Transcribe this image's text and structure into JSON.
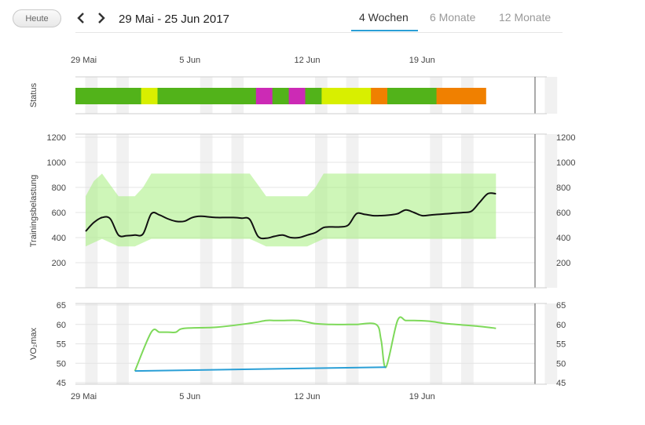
{
  "toolbar": {
    "today_label": "Heute",
    "date_range": "29 Mai - 25 Jun 2017",
    "tabs": [
      {
        "label": "4 Wochen",
        "active": true
      },
      {
        "label": "6 Monate",
        "active": false
      },
      {
        "label": "12 Monate",
        "active": false
      }
    ],
    "prev_icon": "chevron-left-icon",
    "next_icon": "chevron-right-icon",
    "accent_color": "#2a9fd6"
  },
  "chart_data": [
    {
      "type": "timeline",
      "ylabel": "Status",
      "x_tick_labels": [
        "29 Mai",
        "5 Jun",
        "12 Jun",
        "19 Jun"
      ],
      "x_tick_days": [
        0,
        7,
        14,
        21
      ],
      "days_total": 28,
      "segments": [
        {
          "start": 0,
          "end": 4,
          "color": "#52b31a"
        },
        {
          "start": 4,
          "end": 5,
          "color": "#d8ef00"
        },
        {
          "start": 5,
          "end": 11,
          "color": "#52b31a"
        },
        {
          "start": 11,
          "end": 12,
          "color": "#cc2ab5"
        },
        {
          "start": 12,
          "end": 13,
          "color": "#52b31a"
        },
        {
          "start": 13,
          "end": 14,
          "color": "#cc2ab5"
        },
        {
          "start": 14,
          "end": 15,
          "color": "#52b31a"
        },
        {
          "start": 15,
          "end": 18,
          "color": "#d8ef00"
        },
        {
          "start": 18,
          "end": 19,
          "color": "#f08000"
        },
        {
          "start": 19,
          "end": 22,
          "color": "#52b31a"
        },
        {
          "start": 22,
          "end": 25,
          "color": "#f08000"
        }
      ]
    },
    {
      "type": "line",
      "ylabel": "Trainingsbelastung",
      "ylim": [
        0,
        1200
      ],
      "yticks": [
        200,
        400,
        600,
        800,
        1000,
        1200
      ],
      "x_days": [
        0,
        0.5,
        1,
        1.5,
        2,
        2.5,
        3,
        3.5,
        4,
        4.5,
        5,
        5.5,
        6,
        6.5,
        7,
        7.5,
        8,
        8.5,
        9,
        9.5,
        10,
        10.5,
        11,
        11.5,
        12,
        12.5,
        13,
        13.5,
        14,
        14.5,
        15,
        15.5,
        16,
        16.5,
        17,
        17.5,
        18,
        18.5,
        19,
        19.5,
        20,
        20.5,
        21,
        21.5,
        22,
        22.5,
        23,
        23.5,
        24,
        24.5,
        25
      ],
      "series": [
        {
          "values": [
            450,
            520,
            560,
            550,
            420,
            415,
            420,
            430,
            590,
            580,
            550,
            530,
            530,
            560,
            570,
            565,
            560,
            560,
            560,
            555,
            545,
            410,
            395,
            410,
            420,
            400,
            400,
            420,
            440,
            480,
            485,
            485,
            500,
            590,
            585,
            575,
            575,
            580,
            590,
            620,
            600,
            575,
            580,
            585,
            590,
            595,
            600,
            610,
            680,
            750,
            750
          ],
          "color": "#111111"
        }
      ],
      "band": {
        "color": "#a5ef7d",
        "upper": [
          730,
          850,
          910,
          820,
          730,
          730,
          730,
          800,
          910,
          910,
          910,
          910,
          910,
          910,
          910,
          910,
          910,
          910,
          910,
          910,
          910,
          820,
          730,
          730,
          730,
          730,
          730,
          730,
          800,
          910,
          910,
          910,
          910,
          910,
          910,
          910,
          910,
          910,
          910,
          910,
          910,
          910,
          910,
          910,
          910,
          910,
          910,
          910,
          910,
          910,
          910
        ],
        "lower": [
          330,
          360,
          390,
          360,
          330,
          330,
          330,
          360,
          390,
          390,
          390,
          390,
          390,
          390,
          390,
          390,
          390,
          390,
          390,
          390,
          390,
          360,
          330,
          330,
          330,
          330,
          330,
          330,
          360,
          390,
          390,
          390,
          390,
          390,
          390,
          390,
          390,
          390,
          390,
          390,
          390,
          390,
          390,
          390,
          390,
          390,
          390,
          390,
          390,
          390,
          390
        ]
      }
    },
    {
      "type": "line",
      "ylabel": "VO₂max",
      "ylim": [
        45,
        65
      ],
      "yticks": [
        45,
        50,
        55,
        60,
        65
      ],
      "x_tick_labels": [
        "29 Mai",
        "5 Jun",
        "12 Jun",
        "19 Jun"
      ],
      "series": [
        {
          "color": "#7ed95a",
          "x_days": [
            3,
            4,
            4.5,
            5,
            5.5,
            6,
            8,
            10,
            11,
            11.5,
            12,
            13,
            14,
            15,
            16,
            16.5,
            17.7,
            18,
            18.3,
            19,
            19.5,
            20,
            21,
            22,
            24,
            25
          ],
          "values": [
            48,
            58,
            58,
            58,
            58,
            59,
            59.3,
            60.3,
            61,
            61,
            61,
            61,
            60.2,
            60,
            60,
            60,
            60,
            56,
            49,
            61,
            61,
            61,
            60.8,
            60.2,
            59.5,
            59
          ]
        },
        {
          "color": "#2a9fd6",
          "x_days": [
            3,
            18.3
          ],
          "values": [
            48,
            49
          ]
        }
      ]
    }
  ]
}
